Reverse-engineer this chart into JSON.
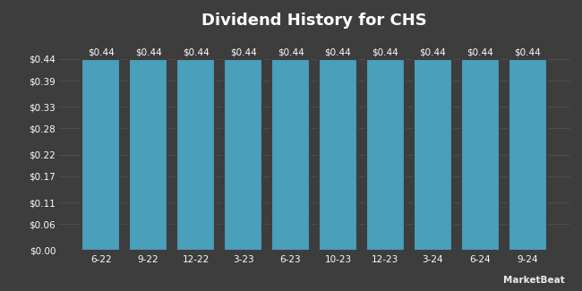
{
  "title": "Dividend History for CHS",
  "categories": [
    "6-22",
    "9-22",
    "12-22",
    "3-23",
    "6-23",
    "10-23",
    "12-23",
    "3-24",
    "6-24",
    "9-24"
  ],
  "values": [
    0.44,
    0.44,
    0.44,
    0.44,
    0.44,
    0.44,
    0.44,
    0.44,
    0.44,
    0.44
  ],
  "bar_color": "#4a9fba",
  "background_color": "#3d3d3d",
  "text_color": "#ffffff",
  "grid_color": "#555555",
  "bar_label_color": "#ffffff",
  "ylim": [
    0,
    0.495
  ],
  "yticks": [
    0.0,
    0.06,
    0.11,
    0.17,
    0.22,
    0.28,
    0.33,
    0.39,
    0.44
  ],
  "ytick_labels": [
    "$0.00",
    "$0.06",
    "$0.11",
    "$0.17",
    "$0.22",
    "$0.28",
    "$0.33",
    "$0.39",
    "$0.44"
  ],
  "title_fontsize": 13,
  "tick_fontsize": 7.5,
  "bar_label_fontsize": 7.5,
  "watermark": "MarketBeat",
  "bar_gap": 0.18
}
